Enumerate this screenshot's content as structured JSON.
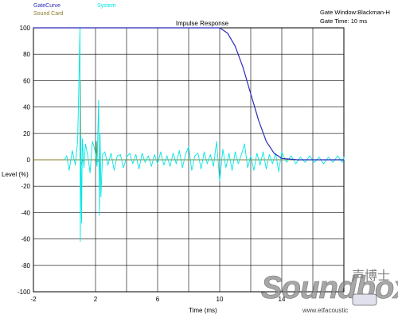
{
  "legend": {
    "gate_curve": "GateCurve",
    "system": "System",
    "sound_card": "Sound Card"
  },
  "info": {
    "gate_window": "Gate Window:Blackman-H",
    "gate_time": "Gate Time: 10 ms"
  },
  "watermark": {
    "logo_text": "Soundbox",
    "chinese": "声博士",
    "site": "www.etfacoustic"
  },
  "colors": {
    "gate_curve": "#2b2bb8",
    "system": "#00e5e5",
    "sound_card": "#8a7d2a",
    "grid": "#000000",
    "zero_line": "#000000"
  },
  "chart_data": {
    "type": "line",
    "title": "Impulse Response",
    "xlabel": "Time (ms)",
    "ylabel": "Level (%)",
    "xlim": [
      -2,
      18
    ],
    "ylim": [
      -100,
      100
    ],
    "x_ticks": [
      -2,
      2,
      6,
      10,
      14
    ],
    "x_tick_labels": [
      "-2",
      "2",
      "6",
      "10",
      "14"
    ],
    "y_ticks": [
      -100,
      -80,
      -60,
      -40,
      -20,
      0,
      20,
      40,
      60,
      80,
      100
    ],
    "y_tick_labels": [
      "-100",
      "-80",
      "-60",
      "-40",
      "-20",
      "0",
      "20",
      "40",
      "60",
      "80",
      "100"
    ],
    "grid": true,
    "legend_position": "top-left",
    "series": [
      {
        "name": "GateCurve",
        "x": [
          -2,
          0,
          4,
          8,
          10,
          10.5,
          11,
          11.5,
          12,
          12.5,
          13,
          13.5,
          14,
          15,
          16,
          18
        ],
        "y": [
          100,
          100,
          100,
          100,
          100,
          96,
          86,
          70,
          50,
          30,
          14,
          5,
          1,
          0,
          0,
          0
        ]
      },
      {
        "name": "System",
        "x": [
          0.0,
          0.15,
          0.3,
          0.5,
          0.7,
          0.85,
          1.0,
          1.02,
          1.05,
          1.1,
          1.15,
          1.25,
          1.35,
          1.5,
          1.65,
          1.8,
          1.95,
          2.1,
          2.2,
          2.25,
          2.3,
          2.35,
          2.45,
          2.6,
          2.8,
          3.0,
          3.2,
          3.4,
          3.6,
          3.8,
          4.0,
          4.2,
          4.4,
          4.6,
          4.8,
          5.0,
          5.2,
          5.4,
          5.6,
          5.8,
          6.0,
          6.2,
          6.4,
          6.6,
          6.8,
          7.0,
          7.2,
          7.4,
          7.6,
          7.8,
          8.0,
          8.2,
          8.4,
          8.6,
          8.8,
          9.0,
          9.2,
          9.4,
          9.6,
          9.8,
          10.0,
          10.2,
          10.4,
          10.6,
          10.8,
          11.0,
          11.2,
          11.4,
          11.6,
          11.8,
          12.0,
          12.2,
          12.4,
          12.6,
          12.8,
          13.0,
          13.2,
          13.4,
          13.6,
          13.8,
          14.0,
          14.3,
          14.6,
          14.9,
          15.2,
          15.5,
          15.8,
          16.1,
          16.4,
          16.7,
          17.0,
          17.3,
          17.6,
          17.9,
          18.2,
          18.5
        ],
        "y": [
          0,
          3,
          -8,
          7,
          -4,
          15,
          100,
          -62,
          18,
          -48,
          16,
          -6,
          12,
          3,
          -10,
          14,
          8,
          -5,
          45,
          -42,
          20,
          -28,
          4,
          6,
          -4,
          5,
          -8,
          3,
          4,
          -6,
          2,
          5,
          -3,
          4,
          -7,
          5,
          -2,
          3,
          -5,
          4,
          -3,
          6,
          -4,
          3,
          -5,
          5,
          -3,
          7,
          -6,
          4,
          10,
          -8,
          3,
          5,
          -7,
          6,
          -3,
          4,
          -5,
          14,
          -16,
          8,
          -6,
          5,
          -8,
          6,
          -3,
          4,
          12,
          -6,
          3,
          -8,
          5,
          -4,
          6,
          -7,
          4,
          -3,
          5,
          -9,
          6,
          -2,
          3,
          -3,
          2,
          -2,
          3,
          -2,
          2,
          -3,
          2,
          -2,
          3,
          -2,
          2,
          0
        ]
      },
      {
        "name": "Sound Card",
        "x": [
          -2,
          1.0,
          1.02,
          1.05,
          1.2,
          2.0,
          2.05,
          2.1,
          2.3,
          18
        ],
        "y": [
          0,
          0,
          60,
          -4,
          0,
          0,
          14,
          -2,
          0,
          0
        ]
      }
    ]
  }
}
